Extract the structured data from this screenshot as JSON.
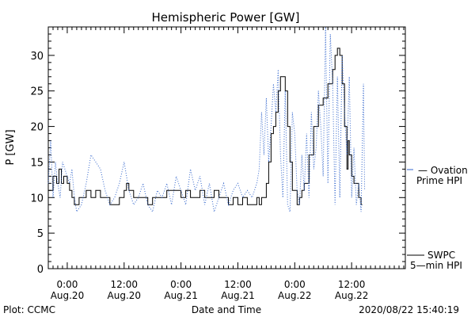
{
  "chart_data": {
    "type": "line",
    "title": "Hemispheric Power [GW]",
    "xlabel": "Date and Time",
    "ylabel": "P [GW]",
    "xlim": [
      "2020-08-19T20:00",
      "2020-08-22T23:20"
    ],
    "ylim": [
      0,
      34
    ],
    "grid": false,
    "x_ticks": [
      {
        "t": "2020-08-20T00:00",
        "label": "0:00",
        "date": "Aug.20"
      },
      {
        "t": "2020-08-20T12:00",
        "label": "12:00",
        "date": "Aug.20"
      },
      {
        "t": "2020-08-21T00:00",
        "label": "0:00",
        "date": "Aug.21"
      },
      {
        "t": "2020-08-21T12:00",
        "label": "12:00",
        "date": "Aug.21"
      },
      {
        "t": "2020-08-22T00:00",
        "label": "0:00",
        "date": "Aug.22"
      },
      {
        "t": "2020-08-22T12:00",
        "label": "12:00",
        "date": "Aug.22"
      }
    ],
    "y_ticks": [
      0,
      5,
      10,
      15,
      20,
      25,
      30
    ],
    "series": [
      {
        "name": "SWPC 5-min HPI",
        "color": "#000000",
        "style": "solid",
        "points": [
          [
            "2020-08-19T20:00",
            11
          ],
          [
            "2020-08-19T20:30",
            11
          ],
          [
            "2020-08-19T21:00",
            13
          ],
          [
            "2020-08-19T21:45",
            12
          ],
          [
            "2020-08-19T22:15",
            14
          ],
          [
            "2020-08-19T22:45",
            12
          ],
          [
            "2020-08-19T23:15",
            13
          ],
          [
            "2020-08-20T00:00",
            12
          ],
          [
            "2020-08-20T00:30",
            11
          ],
          [
            "2020-08-20T01:00",
            10
          ],
          [
            "2020-08-20T01:30",
            9
          ],
          [
            "2020-08-20T02:30",
            10
          ],
          [
            "2020-08-20T03:30",
            10
          ],
          [
            "2020-08-20T04:00",
            11
          ],
          [
            "2020-08-20T05:00",
            10
          ],
          [
            "2020-08-20T06:00",
            11
          ],
          [
            "2020-08-20T07:00",
            10
          ],
          [
            "2020-08-20T08:00",
            10
          ],
          [
            "2020-08-20T09:00",
            9
          ],
          [
            "2020-08-20T10:00",
            9
          ],
          [
            "2020-08-20T11:00",
            10
          ],
          [
            "2020-08-20T12:00",
            11
          ],
          [
            "2020-08-20T12:30",
            12
          ],
          [
            "2020-08-20T13:00",
            11
          ],
          [
            "2020-08-20T14:00",
            10
          ],
          [
            "2020-08-20T16:00",
            10
          ],
          [
            "2020-08-20T17:00",
            9
          ],
          [
            "2020-08-20T18:00",
            10
          ],
          [
            "2020-08-20T20:00",
            10
          ],
          [
            "2020-08-20T21:00",
            11
          ],
          [
            "2020-08-20T23:00",
            11
          ],
          [
            "2020-08-21T00:00",
            10
          ],
          [
            "2020-08-21T01:00",
            11
          ],
          [
            "2020-08-21T02:00",
            10
          ],
          [
            "2020-08-21T03:00",
            10
          ],
          [
            "2020-08-21T04:00",
            11
          ],
          [
            "2020-08-21T05:00",
            10
          ],
          [
            "2020-08-21T06:00",
            10
          ],
          [
            "2020-08-21T07:00",
            11
          ],
          [
            "2020-08-21T08:00",
            10
          ],
          [
            "2020-08-21T09:00",
            10
          ],
          [
            "2020-08-21T10:00",
            9
          ],
          [
            "2020-08-21T11:00",
            10
          ],
          [
            "2020-08-21T12:00",
            9
          ],
          [
            "2020-08-21T13:00",
            10
          ],
          [
            "2020-08-21T14:00",
            9
          ],
          [
            "2020-08-21T15:30",
            9
          ],
          [
            "2020-08-21T16:00",
            10
          ],
          [
            "2020-08-21T16:30",
            9
          ],
          [
            "2020-08-21T17:00",
            10
          ],
          [
            "2020-08-21T17:30",
            10
          ],
          [
            "2020-08-21T18:00",
            12
          ],
          [
            "2020-08-21T18:30",
            15
          ],
          [
            "2020-08-21T19:00",
            19
          ],
          [
            "2020-08-21T19:30",
            20
          ],
          [
            "2020-08-21T20:00",
            22
          ],
          [
            "2020-08-21T20:30",
            25
          ],
          [
            "2020-08-21T21:00",
            27
          ],
          [
            "2020-08-21T21:30",
            27
          ],
          [
            "2020-08-21T22:00",
            25
          ],
          [
            "2020-08-21T22:30",
            20
          ],
          [
            "2020-08-21T23:00",
            15
          ],
          [
            "2020-08-21T23:30",
            11
          ],
          [
            "2020-08-22T00:00",
            11
          ],
          [
            "2020-08-22T00:30",
            9
          ],
          [
            "2020-08-22T01:00",
            10
          ],
          [
            "2020-08-22T01:30",
            11
          ],
          [
            "2020-08-22T02:00",
            12
          ],
          [
            "2020-08-22T03:00",
            16
          ],
          [
            "2020-08-22T04:00",
            20
          ],
          [
            "2020-08-22T05:00",
            23
          ],
          [
            "2020-08-22T06:00",
            24
          ],
          [
            "2020-08-22T07:00",
            26
          ],
          [
            "2020-08-22T08:00",
            28
          ],
          [
            "2020-08-22T08:30",
            30
          ],
          [
            "2020-08-22T09:00",
            31
          ],
          [
            "2020-08-22T09:30",
            30
          ],
          [
            "2020-08-22T10:00",
            26
          ],
          [
            "2020-08-22T10:30",
            20
          ],
          [
            "2020-08-22T11:00",
            14
          ],
          [
            "2020-08-22T11:15",
            18
          ],
          [
            "2020-08-22T11:30",
            16
          ],
          [
            "2020-08-22T12:00",
            13
          ],
          [
            "2020-08-22T12:30",
            12
          ],
          [
            "2020-08-22T13:00",
            12
          ],
          [
            "2020-08-22T13:30",
            10
          ],
          [
            "2020-08-22T14:00",
            9
          ],
          [
            "2020-08-22T14:15",
            9
          ]
        ]
      },
      {
        "name": "Ovation Prime HPI",
        "color": "#3366cc",
        "style": "dotted",
        "points": [
          [
            "2020-08-19T20:00",
            12
          ],
          [
            "2020-08-19T20:30",
            18
          ],
          [
            "2020-08-19T21:00",
            10
          ],
          [
            "2020-08-19T21:30",
            15
          ],
          [
            "2020-08-19T22:00",
            12
          ],
          [
            "2020-08-19T22:30",
            10
          ],
          [
            "2020-08-19T23:00",
            15
          ],
          [
            "2020-08-20T00:00",
            13
          ],
          [
            "2020-08-20T00:30",
            12
          ],
          [
            "2020-08-20T01:00",
            14
          ],
          [
            "2020-08-20T01:30",
            10
          ],
          [
            "2020-08-20T02:00",
            8
          ],
          [
            "2020-08-20T03:00",
            9
          ],
          [
            "2020-08-20T04:00",
            12
          ],
          [
            "2020-08-20T05:00",
            16
          ],
          [
            "2020-08-20T06:00",
            15
          ],
          [
            "2020-08-20T07:00",
            14
          ],
          [
            "2020-08-20T08:00",
            11
          ],
          [
            "2020-08-20T09:00",
            9
          ],
          [
            "2020-08-20T10:00",
            10
          ],
          [
            "2020-08-20T11:00",
            12
          ],
          [
            "2020-08-20T12:00",
            15
          ],
          [
            "2020-08-20T13:00",
            11
          ],
          [
            "2020-08-20T14:00",
            9
          ],
          [
            "2020-08-20T15:00",
            10
          ],
          [
            "2020-08-20T16:00",
            12
          ],
          [
            "2020-08-20T17:00",
            9
          ],
          [
            "2020-08-20T18:00",
            8
          ],
          [
            "2020-08-20T19:00",
            11
          ],
          [
            "2020-08-20T20:00",
            10
          ],
          [
            "2020-08-20T21:00",
            12
          ],
          [
            "2020-08-20T22:00",
            9
          ],
          [
            "2020-08-20T23:00",
            13
          ],
          [
            "2020-08-21T00:00",
            11
          ],
          [
            "2020-08-21T01:00",
            9
          ],
          [
            "2020-08-21T02:00",
            14
          ],
          [
            "2020-08-21T03:00",
            11
          ],
          [
            "2020-08-21T04:00",
            13
          ],
          [
            "2020-08-21T05:00",
            9
          ],
          [
            "2020-08-21T06:00",
            12
          ],
          [
            "2020-08-21T07:00",
            8
          ],
          [
            "2020-08-21T08:00",
            10
          ],
          [
            "2020-08-21T09:00",
            12
          ],
          [
            "2020-08-21T10:00",
            9
          ],
          [
            "2020-08-21T11:00",
            11
          ],
          [
            "2020-08-21T12:00",
            12
          ],
          [
            "2020-08-21T13:00",
            10
          ],
          [
            "2020-08-21T14:00",
            11
          ],
          [
            "2020-08-21T15:00",
            10
          ],
          [
            "2020-08-21T16:00",
            12
          ],
          [
            "2020-08-21T16:30",
            14
          ],
          [
            "2020-08-21T17:00",
            22
          ],
          [
            "2020-08-21T17:30",
            16
          ],
          [
            "2020-08-21T18:00",
            24
          ],
          [
            "2020-08-21T18:30",
            15
          ],
          [
            "2020-08-21T19:00",
            20
          ],
          [
            "2020-08-21T19:30",
            26
          ],
          [
            "2020-08-21T20:00",
            22
          ],
          [
            "2020-08-21T20:30",
            28
          ],
          [
            "2020-08-21T21:00",
            16
          ],
          [
            "2020-08-21T21:30",
            10
          ],
          [
            "2020-08-21T22:00",
            25
          ],
          [
            "2020-08-21T22:30",
            9
          ],
          [
            "2020-08-21T23:00",
            8
          ],
          [
            "2020-08-21T23:30",
            22
          ],
          [
            "2020-08-22T00:00",
            19
          ],
          [
            "2020-08-22T00:30",
            11
          ],
          [
            "2020-08-22T01:00",
            9
          ],
          [
            "2020-08-22T01:30",
            16
          ],
          [
            "2020-08-22T02:00",
            11
          ],
          [
            "2020-08-22T02:30",
            19
          ],
          [
            "2020-08-22T03:00",
            10
          ],
          [
            "2020-08-22T03:30",
            22
          ],
          [
            "2020-08-22T04:00",
            14
          ],
          [
            "2020-08-22T04:30",
            17
          ],
          [
            "2020-08-22T05:00",
            25
          ],
          [
            "2020-08-22T05:30",
            20
          ],
          [
            "2020-08-22T06:00",
            13
          ],
          [
            "2020-08-22T06:30",
            34
          ],
          [
            "2020-08-22T07:00",
            12
          ],
          [
            "2020-08-22T07:30",
            33
          ],
          [
            "2020-08-22T08:00",
            26
          ],
          [
            "2020-08-22T08:30",
            9
          ],
          [
            "2020-08-22T09:00",
            27
          ],
          [
            "2020-08-22T09:30",
            10
          ],
          [
            "2020-08-22T10:00",
            30
          ],
          [
            "2020-08-22T10:30",
            22
          ],
          [
            "2020-08-22T11:00",
            16
          ],
          [
            "2020-08-22T11:30",
            27
          ],
          [
            "2020-08-22T12:00",
            10
          ],
          [
            "2020-08-22T12:30",
            17
          ],
          [
            "2020-08-22T13:00",
            9
          ],
          [
            "2020-08-22T13:30",
            12
          ],
          [
            "2020-08-22T14:00",
            8
          ],
          [
            "2020-08-22T14:30",
            26
          ],
          [
            "2020-08-22T14:45",
            11
          ]
        ]
      }
    ],
    "legend": [
      {
        "series": "Ovation Prime HPI",
        "lines": [
          "— Ovation",
          "Prime HPI"
        ],
        "color": "#3366cc"
      },
      {
        "series": "SWPC 5-min HPI",
        "lines": [
          "SWPC",
          "5—min HPI"
        ],
        "color": "#000000"
      }
    ],
    "legend_placement": "right"
  },
  "footer": {
    "left": "Plot: CCMC",
    "right": "2020/08/22 15:40:19"
  }
}
